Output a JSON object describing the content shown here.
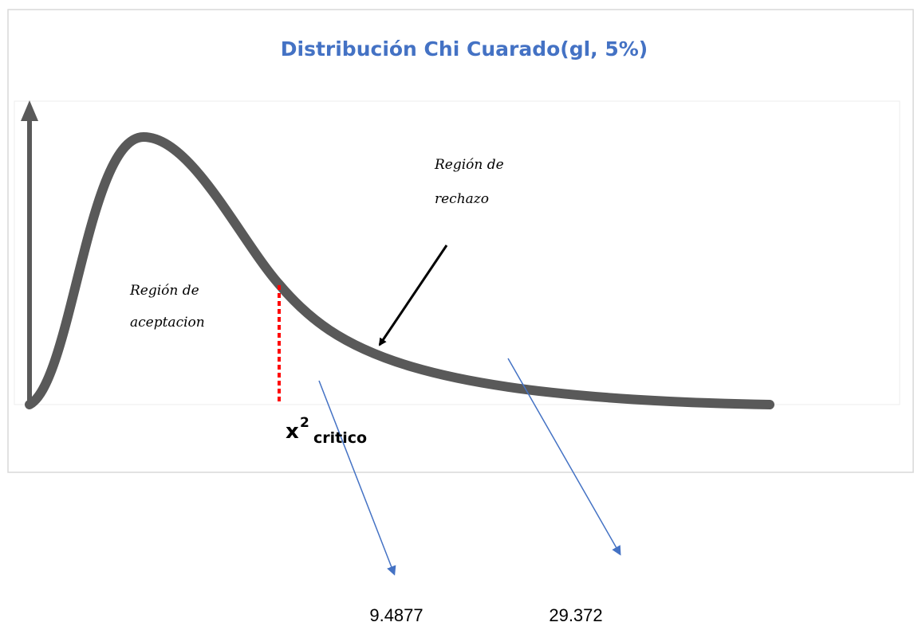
{
  "title": "Distribución Chi Cuarado(gl, 5%)",
  "acceptance_region": [
    "Región de",
    "aceptacion"
  ],
  "rejection_region": [
    "Región de",
    "rechazo"
  ],
  "critical_label": {
    "symbol": "x",
    "superscript": "2",
    "text": "critico"
  },
  "values": [
    9.4877,
    29.372
  ]
}
